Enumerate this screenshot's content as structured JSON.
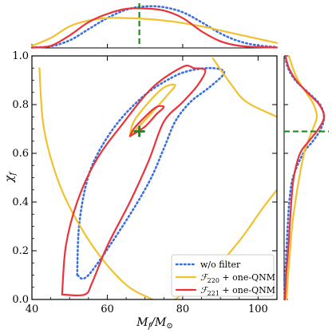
{
  "chart_data": {
    "type": "line",
    "xlabel": "M_f/M_⊙",
    "ylabel": "χ_f",
    "xlim": [
      40,
      105
    ],
    "ylim": [
      0.0,
      1.0
    ],
    "xticks": [
      "40",
      "60",
      "80",
      "100"
    ],
    "yticks": [
      "0.0",
      "0.2",
      "0.4",
      "0.6",
      "0.8",
      "1.0"
    ],
    "grid": false,
    "legend_position": "bottom-right",
    "injection": {
      "x": 68.5,
      "y": 0.69
    },
    "series": [
      {
        "name": "w/o filter",
        "color": "#3b6fe0",
        "style": "dotted",
        "contours": [
          [
            [
              52,
              0.1
            ],
            [
              52.5,
              0.3
            ],
            [
              54.5,
              0.48
            ],
            [
              57.5,
              0.6
            ],
            [
              63,
              0.73
            ],
            [
              70,
              0.84
            ],
            [
              77,
              0.91
            ],
            [
              82,
              0.94
            ],
            [
              88,
              0.95
            ],
            [
              91,
              0.93
            ],
            [
              87,
              0.87
            ],
            [
              82,
              0.81
            ],
            [
              78,
              0.73
            ],
            [
              75,
              0.62
            ],
            [
              71,
              0.48
            ],
            [
              64,
              0.3
            ],
            [
              55,
              0.1
            ],
            [
              52,
              0.1
            ]
          ]
        ]
      },
      {
        "name": "𝓕₂₂₀ + one-QNM",
        "label_main": "ℱ",
        "label_sub": "220",
        "label_suffix": " + one-QNM",
        "color": "#f2c12e",
        "style": "solid",
        "contours": [
          [
            [
              42,
              0.95
            ],
            [
              43,
              0.72
            ],
            [
              46,
              0.53
            ],
            [
              50,
              0.38
            ],
            [
              57,
              0.2
            ],
            [
              65,
              0.06
            ],
            [
              72,
              0.0
            ]
          ],
          [
            [
              78,
              0.0
            ],
            [
              88,
              0.12
            ],
            [
              95,
              0.24
            ],
            [
              101,
              0.37
            ],
            [
              105,
              0.45
            ]
          ],
          [
            [
              88,
              0.99
            ],
            [
              93,
              0.88
            ],
            [
              97,
              0.81
            ],
            [
              105,
              0.75
            ]
          ],
          [
            [
              66,
              0.67
            ],
            [
              72,
              0.77
            ],
            [
              76,
              0.84
            ],
            [
              78,
              0.88
            ],
            [
              75,
              0.87
            ],
            [
              71,
              0.81
            ],
            [
              67,
              0.73
            ],
            [
              66,
              0.67
            ]
          ]
        ]
      },
      {
        "name": "𝓕₂₂₁ + one-QNM",
        "label_main": "ℱ",
        "label_sub": "221",
        "label_suffix": " + one-QNM",
        "color": "#e8343a",
        "style": "solid",
        "contours": [
          [
            [
              48,
              0.02
            ],
            [
              49,
              0.22
            ],
            [
              52,
              0.4
            ],
            [
              57,
              0.57
            ],
            [
              64,
              0.72
            ],
            [
              72,
              0.87
            ],
            [
              80,
              0.955
            ],
            [
              83,
              0.95
            ],
            [
              86,
              0.94
            ],
            [
              84,
              0.88
            ],
            [
              80,
              0.81
            ],
            [
              75,
              0.73
            ],
            [
              71,
              0.57
            ],
            [
              66,
              0.4
            ],
            [
              60,
              0.22
            ],
            [
              56,
              0.07
            ],
            [
              54,
              0.02
            ],
            [
              48,
              0.02
            ]
          ],
          [
            [
              66,
              0.67
            ],
            [
              70,
              0.71
            ],
            [
              73,
              0.76
            ],
            [
              75,
              0.79
            ],
            [
              73,
              0.79
            ],
            [
              70,
              0.75
            ],
            [
              67,
              0.7
            ],
            [
              66,
              0.67
            ]
          ]
        ]
      }
    ],
    "top_marginal": {
      "x_min": 40,
      "x_max": 105,
      "series": [
        {
          "name": "w/o filter",
          "color": "#3b6fe0",
          "style": "dotted",
          "x": [
            40,
            45,
            50,
            55,
            60,
            65,
            70,
            75,
            80,
            85,
            90,
            95,
            100,
            105
          ],
          "y": [
            0.01,
            0.04,
            0.18,
            0.45,
            0.72,
            0.92,
            1.0,
            0.98,
            0.86,
            0.62,
            0.35,
            0.16,
            0.06,
            0.02
          ]
        },
        {
          "name": "F220",
          "color": "#f2c12e",
          "style": "solid",
          "x": [
            40,
            45,
            50,
            55,
            60,
            65,
            70,
            75,
            80,
            85,
            90,
            95,
            100,
            105
          ],
          "y": [
            0.05,
            0.24,
            0.52,
            0.66,
            0.72,
            0.72,
            0.7,
            0.66,
            0.6,
            0.52,
            0.42,
            0.32,
            0.22,
            0.12
          ]
        },
        {
          "name": "F221",
          "color": "#e8343a",
          "style": "solid",
          "x": [
            40,
            45,
            50,
            55,
            60,
            65,
            70,
            75,
            80,
            85,
            90,
            95,
            100,
            105
          ],
          "y": [
            0.01,
            0.05,
            0.3,
            0.62,
            0.82,
            0.94,
            0.95,
            0.9,
            0.72,
            0.4,
            0.16,
            0.05,
            0.02,
            0.01
          ]
        }
      ]
    },
    "right_marginal": {
      "y_min": 0.0,
      "y_max": 1.0,
      "series": [
        {
          "name": "w/o filter",
          "color": "#3b6fe0",
          "style": "dotted",
          "y": [
            0.0,
            0.1,
            0.2,
            0.3,
            0.4,
            0.5,
            0.6,
            0.65,
            0.7,
            0.75,
            0.8,
            0.85,
            0.9,
            0.95,
            1.0
          ],
          "x": [
            0.01,
            0.03,
            0.06,
            0.09,
            0.13,
            0.22,
            0.48,
            0.72,
            0.92,
            1.0,
            0.9,
            0.6,
            0.28,
            0.1,
            0.02
          ]
        },
        {
          "name": "F220",
          "color": "#f2c12e",
          "style": "solid",
          "y": [
            0.0,
            0.1,
            0.2,
            0.3,
            0.4,
            0.5,
            0.6,
            0.65,
            0.7,
            0.75,
            0.8,
            0.85,
            0.9,
            0.95,
            1.0
          ],
          "x": [
            0.06,
            0.1,
            0.15,
            0.2,
            0.28,
            0.38,
            0.5,
            0.6,
            0.72,
            0.82,
            0.74,
            0.55,
            0.35,
            0.22,
            0.12
          ]
        },
        {
          "name": "F221",
          "color": "#e8343a",
          "style": "solid",
          "y": [
            0.0,
            0.1,
            0.2,
            0.3,
            0.4,
            0.5,
            0.6,
            0.65,
            0.7,
            0.75,
            0.8,
            0.85,
            0.9,
            0.95,
            1.0
          ],
          "x": [
            0.02,
            0.05,
            0.1,
            0.14,
            0.18,
            0.24,
            0.4,
            0.62,
            0.86,
            1.0,
            0.88,
            0.58,
            0.3,
            0.12,
            0.03
          ]
        }
      ]
    }
  }
}
